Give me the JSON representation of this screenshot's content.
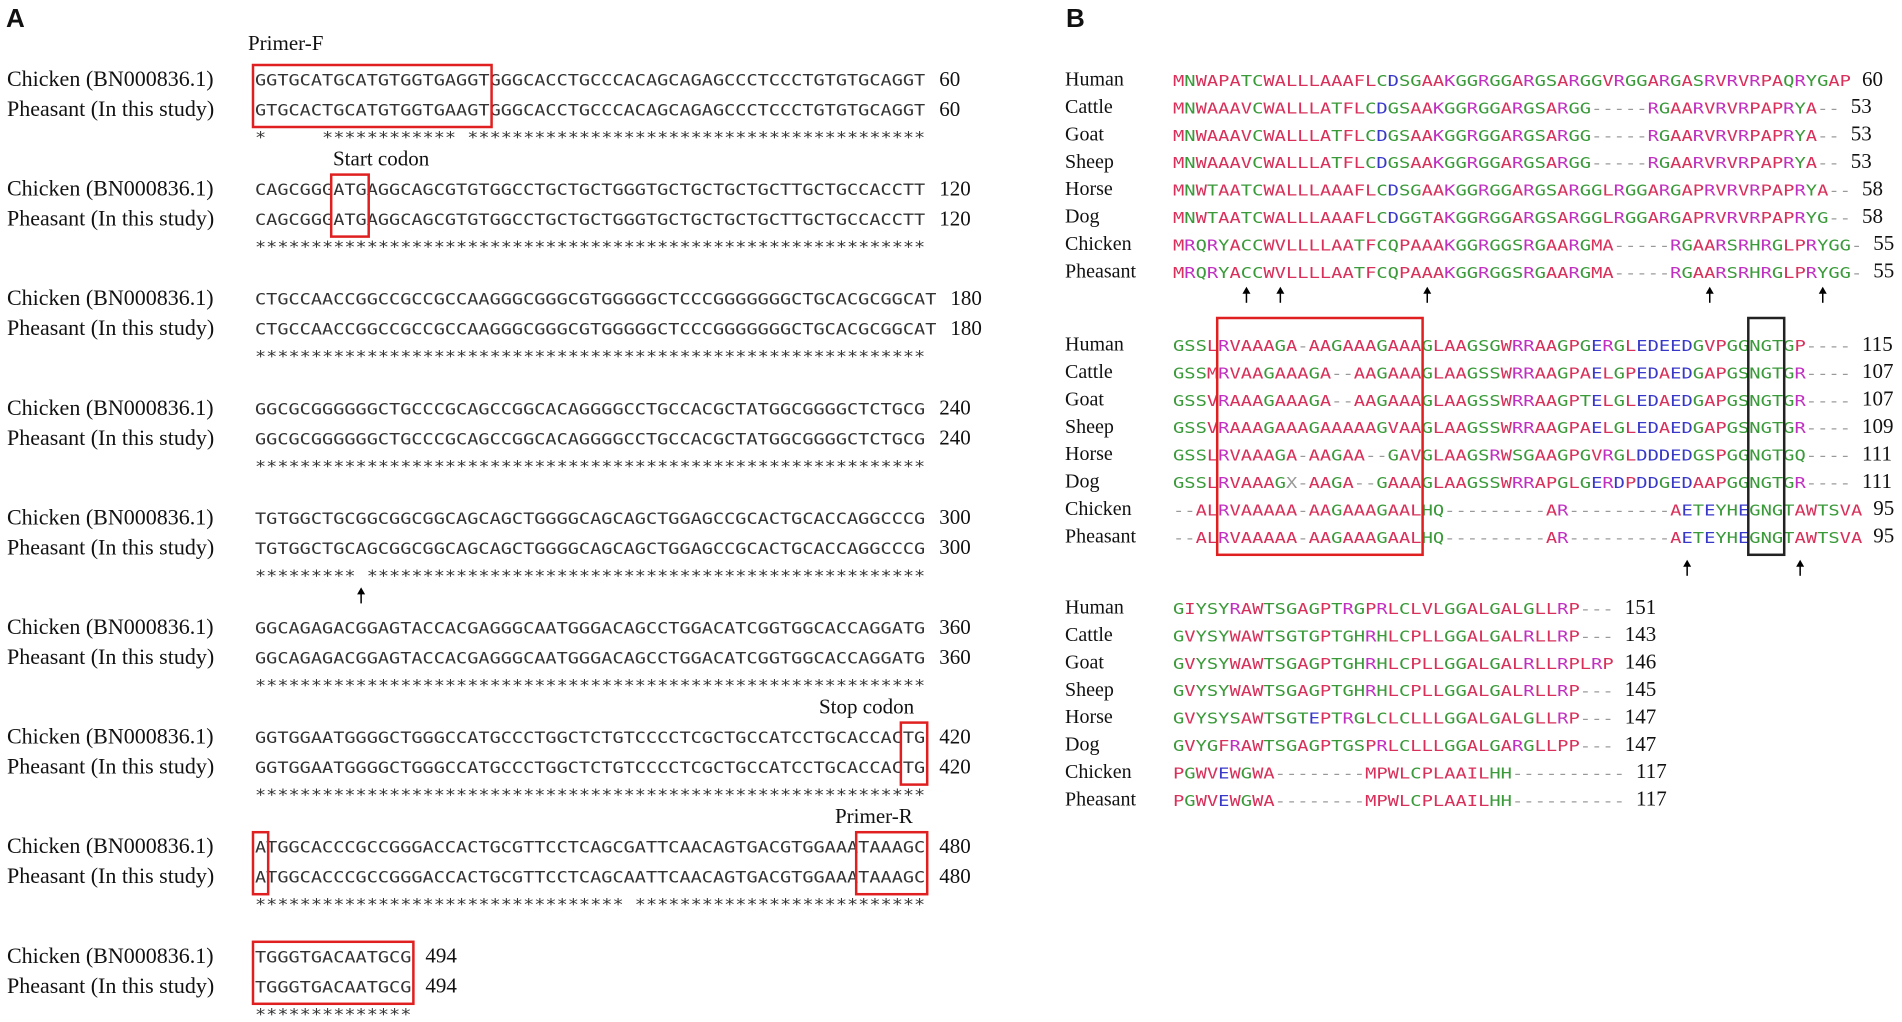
{
  "panel_a": {
    "label": "A",
    "annotations": {
      "primer_f": "Primer-F",
      "start_codon": "Start codon",
      "stop_codon": "Stop codon",
      "primer_r": "Primer-R"
    },
    "blocks": [
      {
        "rows": [
          {
            "name": "Chicken (BN000836.1)",
            "sequence": "GGTGCATGCATGTGGTGAGGTGGGCACCTGCCCACAGCAGAGCCCTCCCTGTGTGCAGGT",
            "position": 60
          },
          {
            "name": "Pheasant (In this study)",
            "sequence": "GTGCACTGCATGTGGTGAAGTGGGCACCTGCCCACAGCAGAGCCCTCCCTGTGTGCAGGT",
            "position": 60
          }
        ],
        "consensus": "*     ************ *****************************************"
      },
      {
        "rows": [
          {
            "name": "Chicken (BN000836.1)",
            "sequence": "CAGCGGGATGAGGCAGCGTGTGGCCTGCTGCTGGGTGCTGCTGCTGCTTGCTGCCACCTT",
            "position": 120
          },
          {
            "name": "Pheasant (In this study)",
            "sequence": "CAGCGGGATGAGGCAGCGTGTGGCCTGCTGCTGGGTGCTGCTGCTGCTTGCTGCCACCTT",
            "position": 120
          }
        ],
        "consensus": "************************************************************"
      },
      {
        "rows": [
          {
            "name": "Chicken (BN000836.1)",
            "sequence": "CTGCCAACCGGCCGCCGCCAAGGGCGGGCGTGGGGGCTCCCGGGGGGGCTGCACGCGGCAT",
            "position": 180
          },
          {
            "name": "Pheasant (In this study)",
            "sequence": "CTGCCAACCGGCCGCCGCCAAGGGCGGGCGTGGGGGCTCCCGGGGGGGCTGCACGCGGCAT",
            "position": 180
          }
        ],
        "consensus": "************************************************************"
      },
      {
        "rows": [
          {
            "name": "Chicken (BN000836.1)",
            "sequence": "GGCGCGGGGGGCTGCCCGCAGCCGGCACAGGGGCCTGCCACGCTATGGCGGGGCTCTGCG",
            "position": 240
          },
          {
            "name": "Pheasant (In this study)",
            "sequence": "GGCGCGGGGGGCTGCCCGCAGCCGGCACAGGGGCCTGCCACGCTATGGCGGGGCTCTGCG",
            "position": 240
          }
        ],
        "consensus": "************************************************************"
      },
      {
        "rows": [
          {
            "name": "Chicken (BN000836.1)",
            "sequence": "TGTGGCTGCGGCGGCGGCAGCAGCTGGGGCAGCAGCTGGAGCCGCACTGCACCAGGCCCG",
            "position": 300
          },
          {
            "name": "Pheasant (In this study)",
            "sequence": "TGTGGCTGCAGCGGCGGCAGCAGCTGGGGCAGCAGCTGGAGCCGCACTGCACCAGGCCCG",
            "position": 300
          }
        ],
        "consensus": "********* **************************************************"
      },
      {
        "rows": [
          {
            "name": "Chicken (BN000836.1)",
            "sequence": "GGCAGAGACGGAGTACCACGAGGGCAATGGGACAGCCTGGACATCGGTGGCACCAGGATG",
            "position": 360
          },
          {
            "name": "Pheasant (In this study)",
            "sequence": "GGCAGAGACGGAGTACCACGAGGGCAATGGGACAGCCTGGACATCGGTGGCACCAGGATG",
            "position": 360
          }
        ],
        "consensus": "************************************************************"
      },
      {
        "rows": [
          {
            "name": "Chicken (BN000836.1)",
            "sequence": "GGTGGAATGGGGCTGGGCCATGCCCTGGCTCTGTCCCCTCGCTGCCATCCTGCACCACTG",
            "position": 420
          },
          {
            "name": "Pheasant (In this study)",
            "sequence": "GGTGGAATGGGGCTGGGCCATGCCCTGGCTCTGTCCCCTCGCTGCCATCCTGCACCACTG",
            "position": 420
          }
        ],
        "consensus": "************************************************************"
      },
      {
        "rows": [
          {
            "name": "Chicken (BN000836.1)",
            "sequence": "ATGGCACCCGCCGGGACCACTGCGTTCCTCAGCGATTCAACAGTGACGTGGAAATAAAGC",
            "position": 480
          },
          {
            "name": "Pheasant (In this study)",
            "sequence": "ATGGCACCCGCCGGGACCACTGCGTTCCTCAGCAATTCAACAGTGACGTGGAAATAAAGC",
            "position": 480
          }
        ],
        "consensus": "********************************* **************************"
      },
      {
        "rows": [
          {
            "name": "Chicken (BN000836.1)",
            "sequence": "TGGGTGACAATGCG",
            "position": 494
          },
          {
            "name": "Pheasant (In this study)",
            "sequence": "TGGGTGACAATGCG",
            "position": 494
          }
        ],
        "consensus": "**************"
      }
    ]
  },
  "panel_b": {
    "label": "B",
    "blocks": [
      {
        "rows": [
          {
            "name": "Human",
            "sequence": "MNWAPATCWALLLAAAFLCDSGAAKGGRGGARGSARGGVRGGARGASRVRVRPAQRYGAP",
            "position": 60
          },
          {
            "name": "Cattle",
            "sequence": "MNWAAAVCWALLLATFLCDGSAAKGGRGGARGSARGG-----RGAARVRVRPAPRYA--",
            "position": 53
          },
          {
            "name": "Goat",
            "sequence": "MNWAAAVCWALLLATFLCDGSAAKGGRGGARGSARGG-----RGAARVRVRPAPRYA--",
            "position": 53
          },
          {
            "name": "Sheep",
            "sequence": "MNWAAAVCWALLLATFLCDGSAAKGGRGGARGSARGG-----RGAARVRVRPAPRYA--",
            "position": 53
          },
          {
            "name": "Horse",
            "sequence": "MNWTAATCWALLLAAAFLCDSGAAKGGRGGARGSARGGLRGGARGAPRVRVRPAPRYA--",
            "position": 58
          },
          {
            "name": "Dog",
            "sequence": "MNWTAATCWALLLAAAFLCDGGTAKGGRGGARGSARGGLRGGARGAPRVRVRPAPRYG--",
            "position": 58
          },
          {
            "name": "Chicken",
            "sequence": "MRQRYACCWVLLLLAATFCQPAAAKGGRGGSRGAARGMA-----RGAARSRHRGLPRYGG-",
            "position": 55
          },
          {
            "name": "Pheasant",
            "sequence": "MRQRYACCWVLLLLAATFCQPAAAKGGRGGSRGAARGMA-----RGAARSRHRGLPRYGG-",
            "position": 55
          }
        ]
      },
      {
        "rows": [
          {
            "name": "Human",
            "sequence": "GSSLRVAAAGA-AAGAAAGAAAGLAAGSGWRRAAGPGERGLEDEEDGVPGGNGTGP----",
            "position": 115
          },
          {
            "name": "Cattle",
            "sequence": "GSSMRVAAGAAAGA--AAGAAAGLAAGSSWRRAAGPAELGPEDAEDGAPGSNGTGR----",
            "position": 107
          },
          {
            "name": "Goat",
            "sequence": "GSSVRAAAGAAAGA--AAGAAAGLAAGSSWRRAAGPTELGLEDAEDGAPGSNGTGR----",
            "position": 107
          },
          {
            "name": "Sheep",
            "sequence": "GSSVRAAAGAAAGAAAAAGVAAGLAAGSSWRRAAGPAELGLEDAEDGAPGSNGTGR----",
            "position": 109
          },
          {
            "name": "Horse",
            "sequence": "GSSLRVAAAGA-AAGAA--GAVGLAAGSRWSGAAGPGVRGLDDDEDGSPGGNGTGQ----",
            "position": 111
          },
          {
            "name": "Dog",
            "sequence": "GSSLRVAAAGX-AAGA--GAAAGLAAGSSWRRAPGLGERDPDDGEDAAPGGNGTGR----",
            "position": 111
          },
          {
            "name": "Chicken",
            "sequence": "--ALRVAAAAA-AAGAAAGAALHQ---------AR---------AETEYHEGNGTAWTSVA",
            "position": 95
          },
          {
            "name": "Pheasant",
            "sequence": "--ALRVAAAAA-AAGAAAGAALHQ---------AR---------AETEYHEGNGTAWTSVA",
            "position": 95
          }
        ]
      },
      {
        "rows": [
          {
            "name": "Human",
            "sequence": "GIYSYRAWTSGAGPTRGPRLCLVLGGALGALGLLRP---",
            "position": 151
          },
          {
            "name": "Cattle",
            "sequence": "GVYSYWAWTSGTGPTGHRHLCPLLGGALGALRLLRP---",
            "position": 143
          },
          {
            "name": "Goat",
            "sequence": "GVYSYWAWTSGAGPTGHRHLCPLLGGALGALRLLRPLRP",
            "position": 146
          },
          {
            "name": "Sheep",
            "sequence": "GVYSYWAWTSGAGPTGHRHLCPLLGGALGALRLLRP---",
            "position": 145
          },
          {
            "name": "Horse",
            "sequence": "GVYSYSAWTSGTEPTRGLCLCLLLGGALGALGLLRP---",
            "position": 147
          },
          {
            "name": "Dog",
            "sequence": "GVYGFRAWTSGAGPTGSPRLCLLLGGALGARGLLPP---",
            "position": 147
          },
          {
            "name": "Chicken",
            "sequence": "PGWVEWGWA--------MPWLCPLAAILHH----------",
            "position": 117
          },
          {
            "name": "Pheasant",
            "sequence": "PGWVEWGWA--------MPWLCPLAAILHH----------",
            "position": 117
          }
        ]
      }
    ]
  }
}
